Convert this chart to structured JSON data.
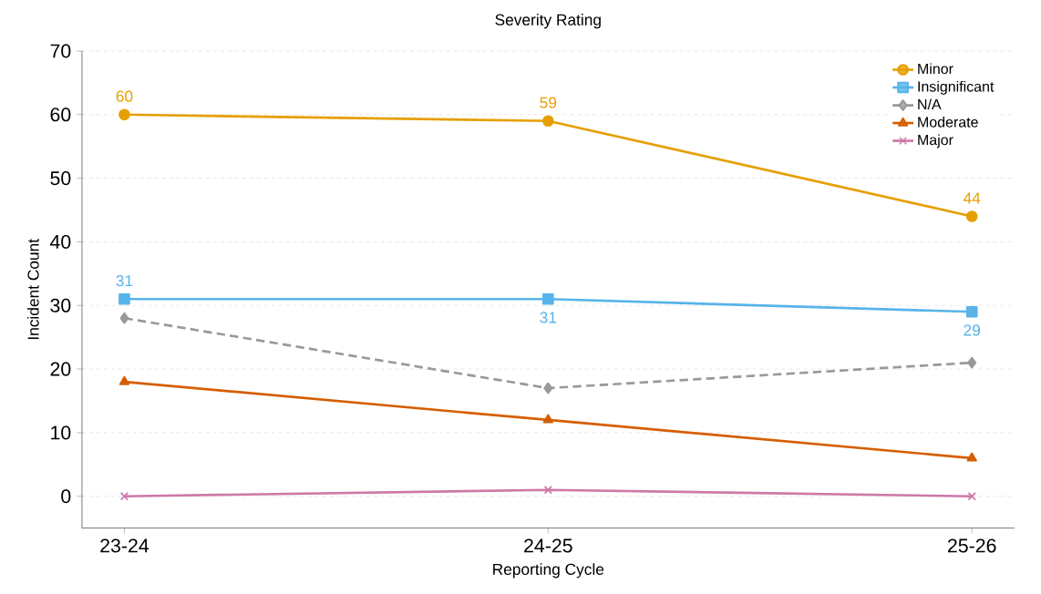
{
  "chart_data": {
    "type": "line",
    "title": "Severity Rating",
    "xlabel": "Reporting Cycle",
    "ylabel": "Incident Count",
    "categories": [
      "23-24",
      "24-25",
      "25-26"
    ],
    "ylim": [
      -5,
      70
    ],
    "yticks": [
      0,
      10,
      20,
      30,
      40,
      50,
      60,
      70
    ],
    "grid": "y",
    "legend": "top right",
    "series": [
      {
        "name": "Minor",
        "color": "#e69f00",
        "values": [
          60,
          59,
          44
        ],
        "marker": "circle",
        "line_style": "solid",
        "value_labels": [
          "60",
          "59",
          "44"
        ]
      },
      {
        "name": "Insignificant",
        "color": "#56b4e9",
        "values": [
          31,
          31,
          29
        ],
        "marker": "square",
        "line_style": "solid",
        "value_labels": [
          "31",
          "31",
          "29"
        ]
      },
      {
        "name": "N/A",
        "color": "#999999",
        "values": [
          28,
          17,
          21
        ],
        "marker": "diamond",
        "line_style": "dashed"
      },
      {
        "name": "Moderate",
        "color": "#d55e00",
        "values": [
          18,
          12,
          6
        ],
        "marker": "triangle",
        "line_style": "solid"
      },
      {
        "name": "Major",
        "color": "#cc79a7",
        "values": [
          0,
          1,
          0
        ],
        "marker": "cross",
        "line_style": "solid"
      }
    ]
  }
}
